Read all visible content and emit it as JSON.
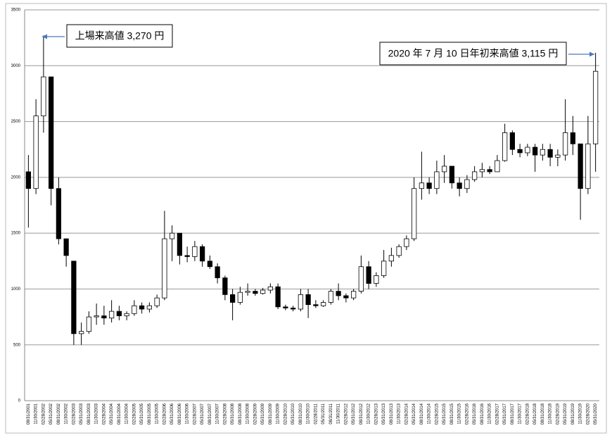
{
  "chart_data": {
    "type": "candlestick",
    "categories": [
      "08/31/2001",
      "11/30/2001",
      "02/28/2002",
      "05/31/2002",
      "08/31/2002",
      "11/30/2002",
      "02/28/2003",
      "05/31/2003",
      "08/31/2003",
      "11/30/2003",
      "02/28/2004",
      "05/31/2004",
      "08/31/2004",
      "11/30/2004",
      "02/28/2005",
      "05/31/2005",
      "08/31/2005",
      "11/30/2005",
      "02/28/2006",
      "05/31/2006",
      "08/31/2006",
      "11/30/2006",
      "02/28/2007",
      "05/31/2007",
      "08/31/2007",
      "11/30/2007",
      "02/28/2008",
      "05/31/2008",
      "08/31/2008",
      "11/30/2008",
      "02/28/2009",
      "05/31/2009",
      "08/31/2009",
      "11/30/2009",
      "02/28/2010",
      "05/31/2010",
      "08/31/2010",
      "11/30/2010",
      "02/28/2011",
      "05/31/2011",
      "08/31/2011",
      "11/30/2011",
      "02/28/2012",
      "05/31/2012",
      "08/31/2012",
      "11/30/2012",
      "02/28/2013",
      "05/31/2013",
      "08/31/2013",
      "11/30/2013",
      "02/28/2014",
      "05/31/2014",
      "08/31/2014",
      "11/30/2014",
      "02/28/2015",
      "05/31/2015",
      "08/31/2015",
      "11/30/2015",
      "02/28/2016",
      "05/31/2016",
      "08/31/2016",
      "11/30/2016",
      "02/28/2017",
      "05/31/2017",
      "08/31/2017",
      "11/30/2017",
      "02/28/2018",
      "05/31/2018",
      "08/31/2018",
      "11/30/2018",
      "02/28/2019",
      "05/31/2019",
      "08/31/2019",
      "11/30/2019",
      "02/28/2020",
      "05/31/2020"
    ],
    "open": [
      2050,
      1900,
      2550,
      2900,
      1900,
      1450,
      1250,
      600,
      620,
      750,
      760,
      740,
      800,
      760,
      780,
      850,
      820,
      850,
      920,
      1450,
      1500,
      1300,
      1290,
      1380,
      1250,
      1200,
      1100,
      950,
      880,
      970,
      980,
      960,
      990,
      1020,
      840,
      830,
      820,
      950,
      860,
      850,
      880,
      980,
      940,
      920,
      980,
      1200,
      1050,
      1120,
      1250,
      1300,
      1380,
      1450,
      1900,
      1950,
      1900,
      2050,
      2100,
      1950,
      1900,
      1980,
      2050,
      2070,
      2050,
      2150,
      2400,
      2250,
      2220,
      2270,
      2200,
      2250,
      2180,
      2200,
      2400,
      2300,
      1900,
      2300
    ],
    "high": [
      2200,
      2700,
      3270,
      2900,
      2000,
      1450,
      1250,
      700,
      800,
      870,
      850,
      900,
      850,
      800,
      900,
      880,
      880,
      950,
      1700,
      1570,
      1500,
      1380,
      1430,
      1400,
      1300,
      1230,
      1120,
      1000,
      1020,
      1050,
      1000,
      1010,
      1050,
      1050,
      860,
      850,
      1000,
      1000,
      900,
      900,
      1000,
      1050,
      960,
      1000,
      1300,
      1250,
      1150,
      1350,
      1370,
      1400,
      1480,
      2000,
      2230,
      2000,
      2150,
      2200,
      2100,
      2000,
      2020,
      2100,
      2130,
      2100,
      2200,
      2480,
      2420,
      2300,
      2300,
      2300,
      2300,
      2300,
      2250,
      2700,
      2550,
      2300,
      2550,
      3115
    ],
    "low": [
      1550,
      1850,
      2400,
      1750,
      1400,
      1200,
      500,
      500,
      600,
      680,
      680,
      700,
      720,
      720,
      760,
      780,
      790,
      830,
      900,
      1250,
      1220,
      1240,
      1250,
      1200,
      1180,
      1050,
      900,
      720,
      860,
      940,
      940,
      950,
      960,
      820,
      810,
      800,
      800,
      740,
      830,
      840,
      860,
      900,
      880,
      900,
      960,
      1000,
      1020,
      1100,
      1200,
      1280,
      1350,
      1430,
      1800,
      1850,
      1850,
      1950,
      1900,
      1830,
      1860,
      1960,
      2000,
      2030,
      2050,
      2140,
      2200,
      2180,
      2190,
      2050,
      2150,
      2100,
      2100,
      2150,
      2200,
      1620,
      1850,
      2050
    ],
    "close": [
      1900,
      2550,
      2900,
      1900,
      1450,
      1300,
      600,
      620,
      750,
      760,
      740,
      800,
      760,
      780,
      850,
      820,
      850,
      920,
      1450,
      1500,
      1300,
      1290,
      1380,
      1250,
      1200,
      1100,
      950,
      880,
      970,
      980,
      960,
      990,
      1020,
      840,
      830,
      820,
      950,
      860,
      850,
      880,
      980,
      940,
      920,
      980,
      1200,
      1050,
      1120,
      1250,
      1300,
      1380,
      1450,
      1900,
      1950,
      1900,
      2050,
      2100,
      1950,
      1900,
      1980,
      2050,
      2070,
      2050,
      2150,
      2400,
      2250,
      2220,
      2270,
      2200,
      2250,
      2180,
      2200,
      2400,
      2300,
      1900,
      2300,
      2950
    ],
    "up_color": "#ffffff",
    "down_color": "#000000",
    "ylim": [
      0,
      3500
    ],
    "yticks": [
      0,
      500,
      1000,
      1500,
      2000,
      2500,
      3000,
      3500
    ],
    "grid": true,
    "annotations": [
      {
        "text": "上場来高値 3,270 円"
      },
      {
        "text": "2020 年 7 月 10 日年初来高値  3,115 円"
      }
    ]
  }
}
